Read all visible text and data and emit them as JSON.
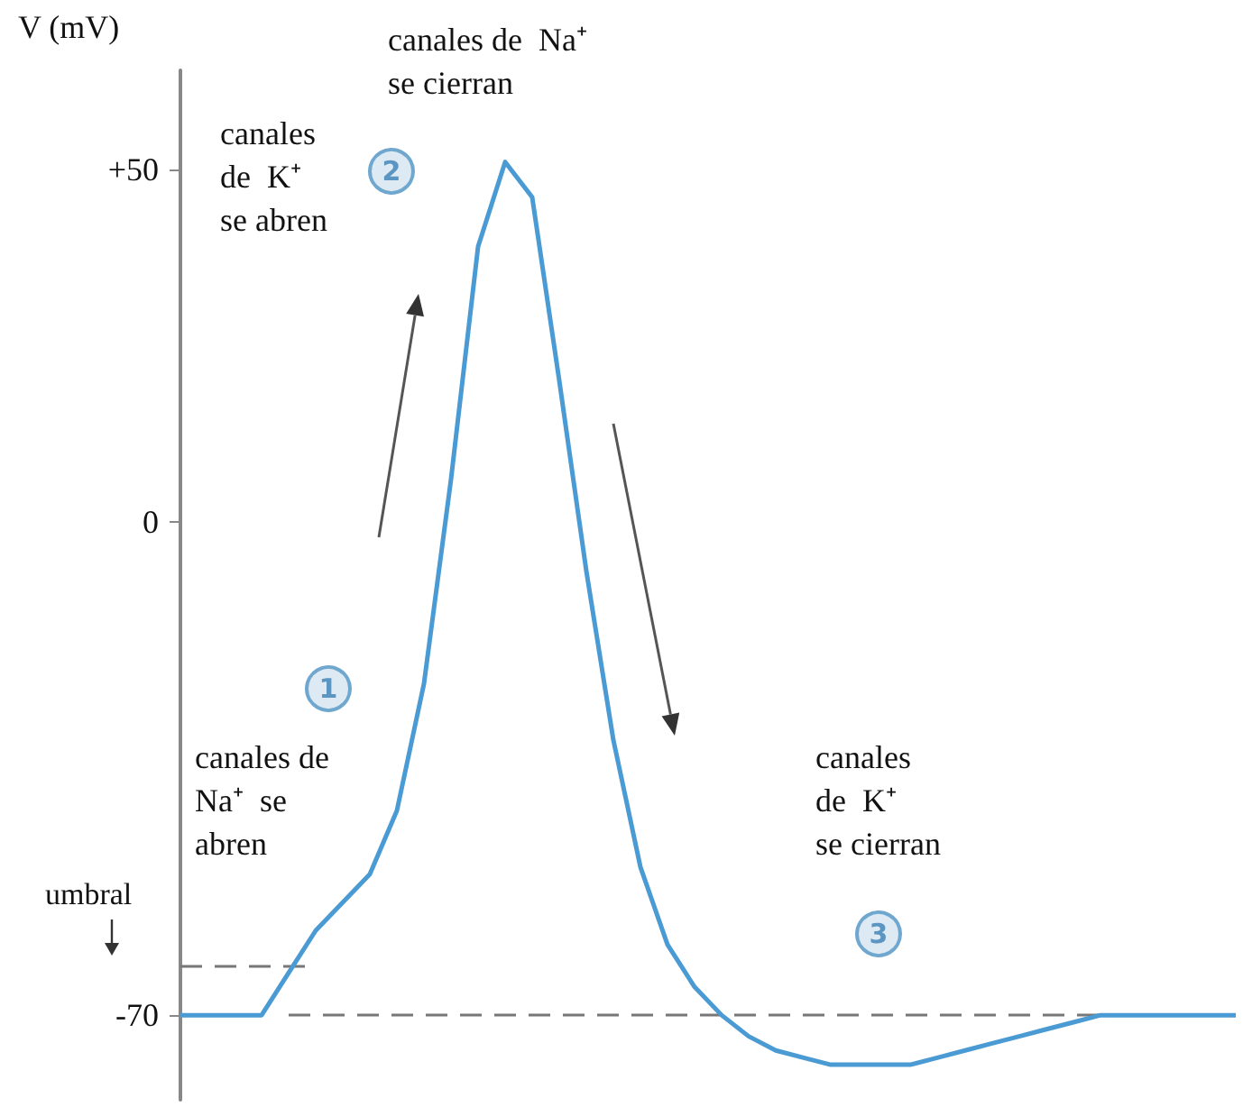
{
  "chart_data": {
    "type": "line",
    "ylabel": "V (mV)",
    "categories": [
      null,
      null,
      null,
      null,
      null,
      null,
      null,
      null,
      null,
      null,
      null,
      null,
      null,
      null,
      null,
      null,
      null,
      null,
      null,
      null,
      null,
      null,
      null,
      null,
      null,
      null,
      null,
      null,
      null,
      null,
      null,
      null,
      null,
      null,
      null,
      null,
      null,
      null,
      null,
      null
    ],
    "series": [
      {
        "color": "#4a9ad4",
        "values": [
          -70,
          -70,
          -70,
          -70,
          -64,
          -58,
          -54,
          -50,
          -41,
          -23,
          6,
          39,
          51,
          46,
          20,
          -7,
          -31,
          -49,
          -60,
          -66,
          -70,
          -73,
          -75,
          -76,
          -77,
          -77,
          -77,
          -77,
          -76,
          -75,
          -74,
          -73,
          -72,
          -71,
          -70,
          -70,
          -70,
          -70,
          -70,
          -70
        ]
      }
    ],
    "ylim": [
      -82,
      64
    ],
    "yticks": [
      {
        "value": 50,
        "label": "+50"
      },
      0,
      -70
    ],
    "ref_lines": [
      {
        "axis": "y",
        "value": -63,
        "label": "umbral",
        "color": "#777777",
        "line_style": "dashed"
      },
      {
        "axis": "y",
        "value": -70,
        "label": null,
        "color": "#777777",
        "line_style": "dashed"
      }
    ],
    "annotations": [
      "canales de  Na⁺\nse cierran",
      "canales\nde  K⁺\nse abren",
      "2",
      "1",
      "canales de\nNa⁺  se\nabren",
      "canales\nde  K⁺\nse cierran",
      "3"
    ]
  }
}
